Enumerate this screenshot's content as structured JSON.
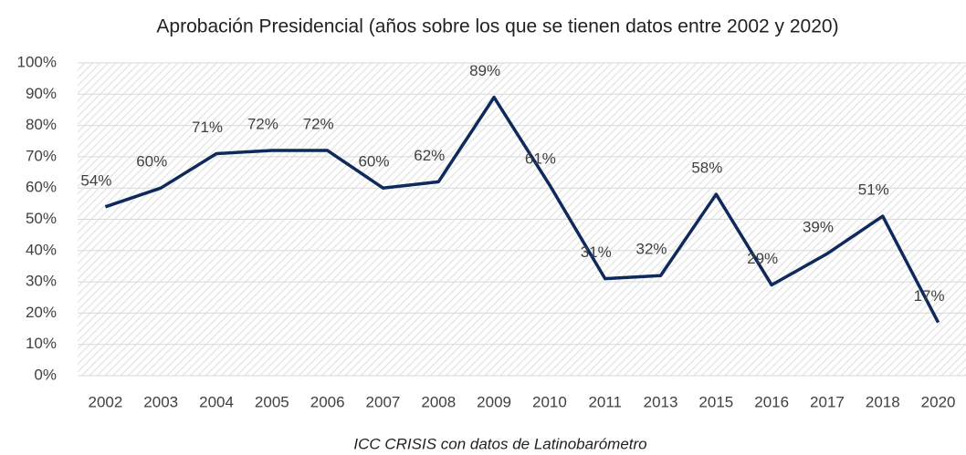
{
  "chart_data": {
    "type": "line",
    "title": "Aprobación Presidencial (años sobre los que se tienen datos entre 2002 y 2020)",
    "caption": "ICC CRISIS con datos de Latinobarómetro",
    "categories": [
      "2002",
      "2003",
      "2004",
      "2005",
      "2006",
      "2007",
      "2008",
      "2009",
      "2010",
      "2011",
      "2013",
      "2015",
      "2016",
      "2017",
      "2018",
      "2020"
    ],
    "series": [
      {
        "name": "Aprobación Presidencial",
        "color": "#0e2a5c",
        "values": [
          54,
          60,
          71,
          72,
          72,
          60,
          62,
          89,
          61,
          31,
          32,
          58,
          29,
          39,
          51,
          17
        ],
        "value_labels": [
          "54%",
          "60%",
          "71%",
          "72%",
          "72%",
          "60%",
          "62%",
          "89%",
          "61%",
          "31%",
          "32%",
          "58%",
          "29%",
          "39%",
          "51%",
          "17%"
        ]
      }
    ],
    "ylim": [
      0,
      100
    ],
    "yticks": [
      {
        "value": 0,
        "label": "0%"
      },
      {
        "value": 10,
        "label": "10%"
      },
      {
        "value": 20,
        "label": "20%"
      },
      {
        "value": 30,
        "label": "30%"
      },
      {
        "value": 40,
        "label": "40%"
      },
      {
        "value": 50,
        "label": "50%"
      },
      {
        "value": 60,
        "label": "60%"
      },
      {
        "value": 70,
        "label": "70%"
      },
      {
        "value": 80,
        "label": "80%"
      },
      {
        "value": 90,
        "label": "90%"
      },
      {
        "value": 100,
        "label": "100%"
      }
    ],
    "grid": true
  }
}
